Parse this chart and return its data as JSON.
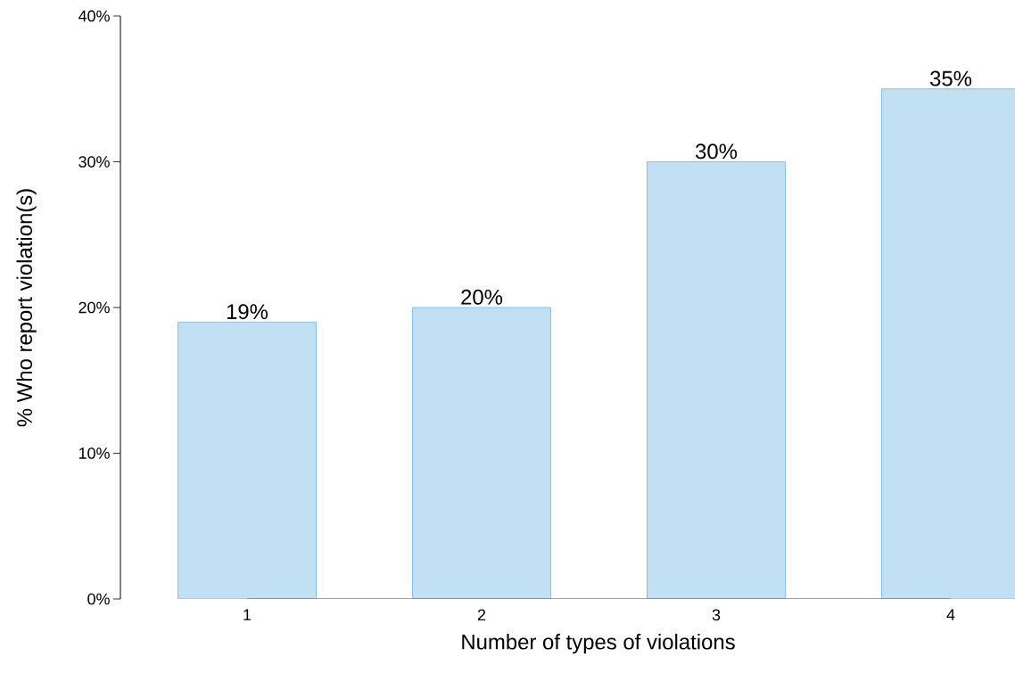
{
  "chart_data": {
    "type": "bar",
    "xlabel": "Number of types of violations",
    "ylabel": "% Who report violation(s)",
    "categories": [
      "1",
      "2",
      "3",
      "4"
    ],
    "values": [
      19,
      20,
      30,
      35
    ],
    "value_labels": [
      "19%",
      "20%",
      "30%",
      "35%"
    ],
    "color": "#c2e0f4",
    "ylim": [
      0,
      40
    ],
    "yticks": [
      {
        "value": 0,
        "label": "0%"
      },
      {
        "value": 10,
        "label": "10%"
      },
      {
        "value": 20,
        "label": "20%"
      },
      {
        "value": 30,
        "label": "30%"
      },
      {
        "value": 40,
        "label": "40%"
      }
    ],
    "grid": false
  }
}
